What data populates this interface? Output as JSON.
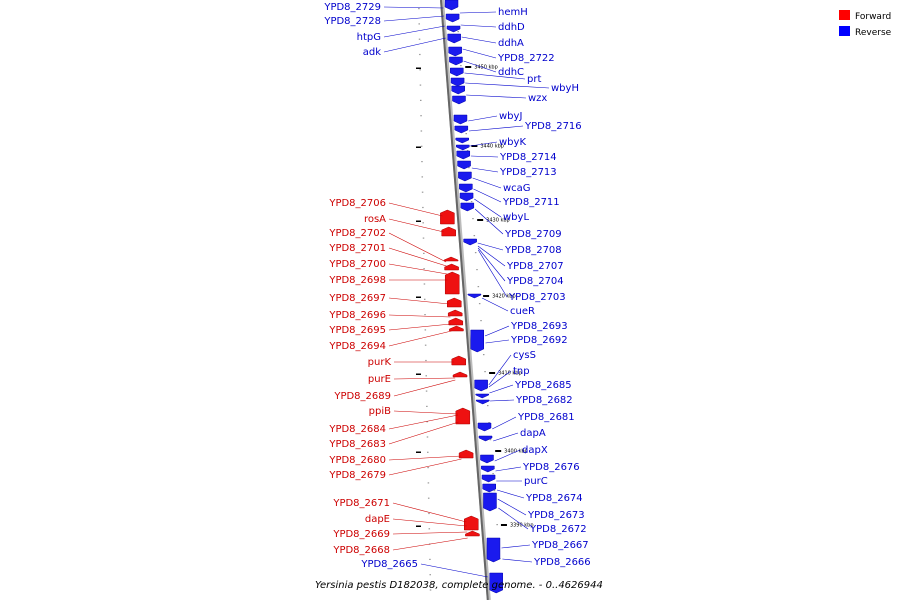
{
  "caption": "Yersinia pestis D182038, complete genome. - 0..4626944",
  "legend": {
    "forward": {
      "label": "Forward",
      "color": "#ff0000"
    },
    "reverse": {
      "label": "Reverse",
      "color": "#0000ff"
    }
  },
  "colors": {
    "forward": "#ee1111",
    "reverse": "#1a1aee",
    "forward_label": "#cc0000",
    "reverse_label": "#0000cc"
  },
  "ruler_ticks": [
    "3450 kbp",
    "3440 kbp",
    "3430 kbp",
    "3420 kbp",
    "3410 kbp",
    "3400 kbp",
    "3390 kbp"
  ],
  "reverse_labels": [
    "YPD8_2729",
    "YPD8_2728",
    "htpG",
    "adk",
    "hemH",
    "ddhD",
    "ddhA",
    "YPD8_2722",
    "ddhC",
    "prt",
    "wbyH",
    "wzx",
    "wbyJ",
    "YPD8_2716",
    "wbyK",
    "YPD8_2714",
    "YPD8_2713",
    "wcaG",
    "YPD8_2711",
    "wbyL",
    "YPD8_2709",
    "YPD8_2708",
    "YPD8_2707",
    "YPD8_2704",
    "YPD8_2703",
    "cueR",
    "YPD8_2693",
    "YPD8_2692",
    "cysS",
    "tnp",
    "YPD8_2685",
    "YPD8_2682",
    "YPD8_2681",
    "dapA",
    "dapX",
    "YPD8_2676",
    "purC",
    "YPD8_2674",
    "YPD8_2673",
    "YPD8_2672",
    "YPD8_2667",
    "YPD8_2666",
    "YPD8_2665"
  ],
  "forward_labels": [
    "YPD8_2706",
    "rosA",
    "YPD8_2702",
    "YPD8_2701",
    "YPD8_2700",
    "YPD8_2698",
    "YPD8_2697",
    "YPD8_2696",
    "YPD8_2695",
    "YPD8_2694",
    "purK",
    "purE",
    "YPD8_2689",
    "ppiB",
    "YPD8_2684",
    "YPD8_2683",
    "YPD8_2680",
    "YPD8_2679",
    "YPD8_2671",
    "dapE",
    "YPD8_2669",
    "YPD8_2668"
  ]
}
